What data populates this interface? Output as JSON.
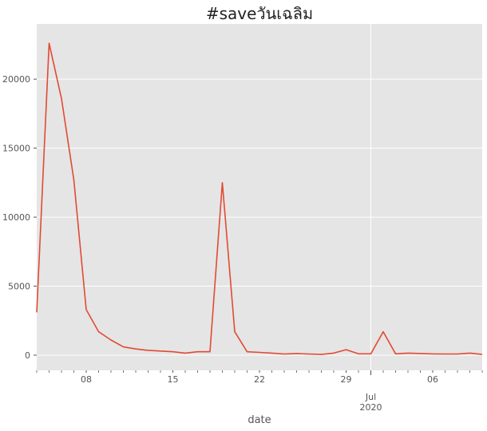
{
  "chart_data": {
    "type": "line",
    "title": "#saveวันเฉลิม",
    "xlabel": "date",
    "ylabel": "",
    "ylim": [
      -1100,
      24000
    ],
    "xlim": [
      "2020-06-04",
      "2020-07-10"
    ],
    "grid": true,
    "style": "ggplot",
    "line_color": "#E24A33",
    "plot_background": "#E5E5E5",
    "y_ticks": [
      0,
      5000,
      10000,
      15000,
      20000
    ],
    "x_ticks": [
      {
        "date": "2020-06-08",
        "label": "08"
      },
      {
        "date": "2020-06-15",
        "label": "15"
      },
      {
        "date": "2020-06-22",
        "label": "22"
      },
      {
        "date": "2020-06-29",
        "label": "29"
      },
      {
        "date": "2020-07-01",
        "label": "Jul",
        "label2": "2020"
      },
      {
        "date": "2020-07-06",
        "label": "06"
      }
    ],
    "series": [
      {
        "x": [
          "2020-06-04",
          "2020-06-05",
          "2020-06-06",
          "2020-06-07",
          "2020-06-08",
          "2020-06-09",
          "2020-06-10",
          "2020-06-11",
          "2020-06-12",
          "2020-06-13",
          "2020-06-14",
          "2020-06-15",
          "2020-06-16",
          "2020-06-17",
          "2020-06-18",
          "2020-06-19",
          "2020-06-20",
          "2020-06-21",
          "2020-06-22",
          "2020-06-23",
          "2020-06-24",
          "2020-06-25",
          "2020-06-26",
          "2020-06-27",
          "2020-06-28",
          "2020-06-29",
          "2020-06-30",
          "2020-07-01",
          "2020-07-02",
          "2020-07-03",
          "2020-07-04",
          "2020-07-05",
          "2020-07-06",
          "2020-07-07",
          "2020-07-08",
          "2020-07-09",
          "2020-07-10"
        ],
        "values": [
          3100,
          22600,
          18600,
          12700,
          3300,
          1700,
          1100,
          600,
          450,
          350,
          300,
          250,
          150,
          250,
          250,
          12500,
          1700,
          250,
          200,
          150,
          80,
          120,
          80,
          50,
          150,
          400,
          100,
          100,
          1700,
          100,
          150,
          120,
          90,
          80,
          80,
          150,
          50
        ]
      }
    ]
  }
}
